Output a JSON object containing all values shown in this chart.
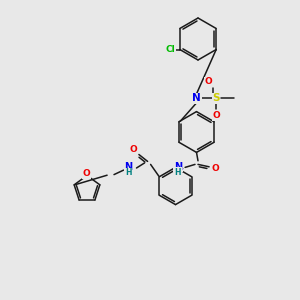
{
  "bg_color": "#e8e8e8",
  "bond_color": "#1a1a1a",
  "atom_colors": {
    "Cl": "#00bb00",
    "N": "#0000ee",
    "S": "#cccc00",
    "O": "#ee0000",
    "H": "#008080",
    "C": "#1a1a1a"
  }
}
